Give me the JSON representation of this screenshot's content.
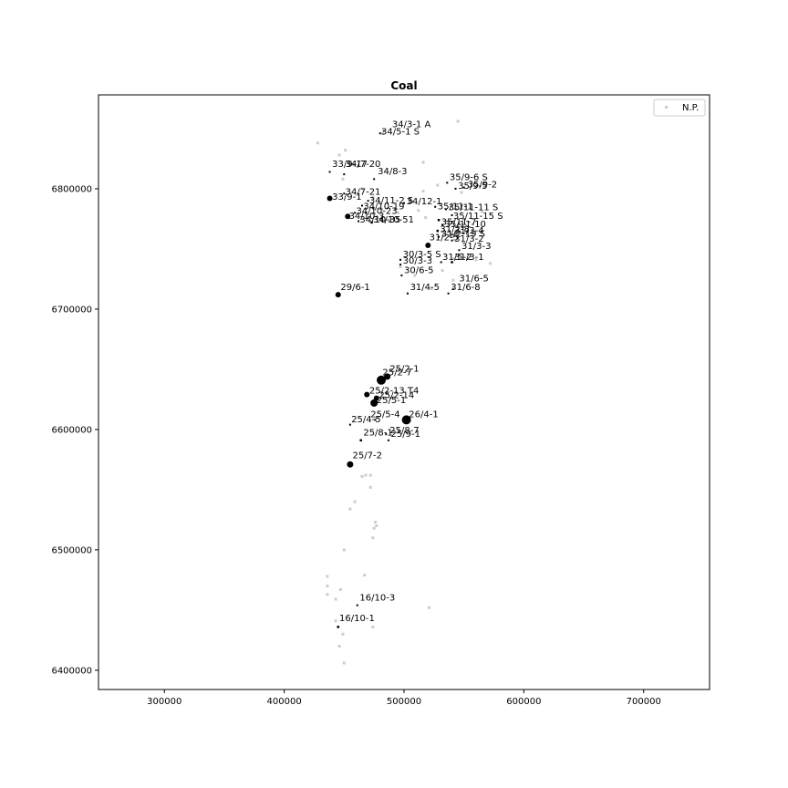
{
  "chart_data": {
    "type": "scatter",
    "title": "Coal",
    "xlabel": "",
    "ylabel": "",
    "xlim": [
      245000,
      755000
    ],
    "ylim": [
      6384000,
      6878000
    ],
    "xticks": [
      300000,
      400000,
      500000,
      600000,
      700000
    ],
    "yticks": [
      6400000,
      6500000,
      6600000,
      6700000,
      6800000
    ],
    "grid": false,
    "legend": {
      "placement": "top-right",
      "entries": [
        "N.P."
      ]
    },
    "colors": {
      "np": "#cccccc",
      "wells": "#000000"
    },
    "np_points": [
      [
        428000,
        6838000
      ],
      [
        446000,
        6828000
      ],
      [
        451000,
        6832000
      ],
      [
        516000,
        6822000
      ],
      [
        545000,
        6856000
      ],
      [
        482000,
        6846000
      ],
      [
        455000,
        6820000
      ],
      [
        449000,
        6808000
      ],
      [
        465000,
        6800000
      ],
      [
        474000,
        6793000
      ],
      [
        516000,
        6798000
      ],
      [
        528000,
        6803000
      ],
      [
        556000,
        6806000
      ],
      [
        548000,
        6797000
      ],
      [
        518000,
        6776000
      ],
      [
        512000,
        6782000
      ],
      [
        565000,
        6781000
      ],
      [
        548000,
        6770000
      ],
      [
        495000,
        6780000
      ],
      [
        488000,
        6773000
      ],
      [
        541000,
        6742000
      ],
      [
        560000,
        6741000
      ],
      [
        572000,
        6738000
      ],
      [
        532000,
        6732000
      ],
      [
        497000,
        6735000
      ],
      [
        509000,
        6728000
      ],
      [
        541000,
        6724000
      ],
      [
        523000,
        6717000
      ],
      [
        472000,
        6562000
      ],
      [
        468000,
        6562000
      ],
      [
        465000,
        6561000
      ],
      [
        472000,
        6552000
      ],
      [
        459000,
        6540000
      ],
      [
        455000,
        6534000
      ],
      [
        476000,
        6523000
      ],
      [
        477000,
        6520000
      ],
      [
        475000,
        6518000
      ],
      [
        474000,
        6510000
      ],
      [
        450000,
        6500000
      ],
      [
        436000,
        6478000
      ],
      [
        467000,
        6479000
      ],
      [
        436000,
        6470000
      ],
      [
        447000,
        6467000
      ],
      [
        436000,
        6463000
      ],
      [
        443000,
        6459000
      ],
      [
        521000,
        6452000
      ],
      [
        443000,
        6441000
      ],
      [
        474000,
        6436000
      ],
      [
        449000,
        6430000
      ],
      [
        446000,
        6420000
      ],
      [
        450000,
        6406000
      ],
      [
        482000,
        6627000
      ]
    ],
    "wells": [
      {
        "name": "34/3-1 A",
        "x": 483000,
        "y": 6848000,
        "size": 1.5
      },
      {
        "name": "34/5-1 S",
        "x": 480000,
        "y": 6846000,
        "size": 2
      },
      {
        "name": "33/9-17",
        "x": 438000,
        "y": 6814000,
        "size": 2
      },
      {
        "name": "34/7-20",
        "x": 450000,
        "y": 6812000,
        "size": 2
      },
      {
        "name": "34/8-3",
        "x": 475000,
        "y": 6808000,
        "size": 2
      },
      {
        "name": "35/9-6 S",
        "x": 536000,
        "y": 6805000,
        "size": 2
      },
      {
        "name": "35/9-2",
        "x": 550000,
        "y": 6801000,
        "size": 2
      },
      {
        "name": "35/9-5",
        "x": 543000,
        "y": 6800000,
        "size": 2
      },
      {
        "name": "34/7-21",
        "x": 450000,
        "y": 6796000,
        "size": 2
      },
      {
        "name": "33/9-1",
        "x": 438000,
        "y": 6792000,
        "size": 3
      },
      {
        "name": "34/11-2 S",
        "x": 470000,
        "y": 6790000,
        "size": 2
      },
      {
        "name": "34/12-1",
        "x": 500000,
        "y": 6788000,
        "size": 2
      },
      {
        "name": "34/10-19",
        "x": 465000,
        "y": 6786000,
        "size": 2
      },
      {
        "name": "35/11-1",
        "x": 526000,
        "y": 6785000,
        "size": 2
      },
      {
        "name": "35/11-11 S",
        "x": 535000,
        "y": 6783000,
        "size": 2
      },
      {
        "name": "34/10-23",
        "x": 459000,
        "y": 6780000,
        "size": 2
      },
      {
        "name": "35/11-15 S",
        "x": 540000,
        "y": 6778000,
        "size": 2
      },
      {
        "name": "34/10-3",
        "x": 453000,
        "y": 6777000,
        "size": 3
      },
      {
        "name": "34/10-35",
        "x": 462000,
        "y": 6773000,
        "size": 2
      },
      {
        "name": "34/10-51",
        "x": 473000,
        "y": 6772000,
        "size": 2.5
      },
      {
        "name": "35/11-7",
        "x": 529000,
        "y": 6774000,
        "size": 2.5
      },
      {
        "name": "35/11-10",
        "x": 532000,
        "y": 6770000,
        "size": 2
      },
      {
        "name": "31/2-8",
        "x": 528000,
        "y": 6765000,
        "size": 2.5
      },
      {
        "name": "31/3-4",
        "x": 540000,
        "y": 6762000,
        "size": 2
      },
      {
        "name": "31/2-19 S",
        "x": 529000,
        "y": 6760000,
        "size": 2
      },
      {
        "name": "31/3-2",
        "x": 540000,
        "y": 6757000,
        "size": 2
      },
      {
        "name": "31/2-5",
        "x": 520000,
        "y": 6753000,
        "size": 3
      },
      {
        "name": "31/3-3",
        "x": 546000,
        "y": 6749000,
        "size": 2
      },
      {
        "name": "30/3-5 S",
        "x": 497000,
        "y": 6741000,
        "size": 2
      },
      {
        "name": "31/5-2",
        "x": 531000,
        "y": 6739000,
        "size": 2
      },
      {
        "name": "31/3-1",
        "x": 540000,
        "y": 6739000,
        "size": 2.5
      },
      {
        "name": "30/3-3",
        "x": 497000,
        "y": 6737000,
        "size": 2
      },
      {
        "name": "30/6-5",
        "x": 498000,
        "y": 6728000,
        "size": 2
      },
      {
        "name": "31/6-5",
        "x": 541000,
        "y": 6717000,
        "size": 1.5
      },
      {
        "name": "29/6-1",
        "x": 445000,
        "y": 6712000,
        "size": 3
      },
      {
        "name": "31/4-5",
        "x": 503000,
        "y": 6713000,
        "size": 2
      },
      {
        "name": "31/6-8",
        "x": 537000,
        "y": 6713000,
        "size": 2
      },
      {
        "name": "25/2-1",
        "x": 486000,
        "y": 6644000,
        "size": 3.5
      },
      {
        "name": "25/2-7",
        "x": 481000,
        "y": 6641000,
        "size": 5
      },
      {
        "name": "25/2-13 T4",
        "x": 477000,
        "y": 6626000,
        "size": 3
      },
      {
        "name": "25/2-14",
        "x": 469000,
        "y": 6629000,
        "size": 3
      },
      {
        "name": "25/5-1",
        "x": 475000,
        "y": 6622000,
        "size": 4
      },
      {
        "name": "25/5-4",
        "x": 476000,
        "y": 6608000,
        "size": 2
      },
      {
        "name": "26/4-1",
        "x": 502000,
        "y": 6608000,
        "size": 5
      },
      {
        "name": "25/4-5",
        "x": 455000,
        "y": 6604000,
        "size": 2
      },
      {
        "name": "25/8-7",
        "x": 485000,
        "y": 6596000,
        "size": 2
      },
      {
        "name": "25/8-1",
        "x": 464000,
        "y": 6591000,
        "size": 2.5
      },
      {
        "name": "25/9-1",
        "x": 487000,
        "y": 6591000,
        "size": 2
      },
      {
        "name": "25/7-2",
        "x": 455000,
        "y": 6571000,
        "size": 3.5
      },
      {
        "name": "16/10-3",
        "x": 461000,
        "y": 6454000,
        "size": 2
      },
      {
        "name": "16/10-1",
        "x": 445000,
        "y": 6436000,
        "size": 2.5
      }
    ],
    "labels": [
      {
        "text": "34/3-1 A",
        "x": 490000,
        "y": 6851000
      },
      {
        "text": "34/5-1 S",
        "x": 481000,
        "y": 6845000
      },
      {
        "text": "33/9-17",
        "x": 440000,
        "y": 6818000
      },
      {
        "text": "34/7-20",
        "x": 451000,
        "y": 6818000
      },
      {
        "text": "34/8-3",
        "x": 478000,
        "y": 6812000
      },
      {
        "text": "35/9-6 S",
        "x": 538000,
        "y": 6807000
      },
      {
        "text": "35/9-2",
        "x": 553000,
        "y": 6801000
      },
      {
        "text": "35/9-5",
        "x": 545000,
        "y": 6800000
      },
      {
        "text": "34/7-21",
        "x": 451000,
        "y": 6795000
      },
      {
        "text": "33/9-1",
        "x": 440000,
        "y": 6791000
      },
      {
        "text": "34/11-2 S",
        "x": 471000,
        "y": 6788000
      },
      {
        "text": "34/12-1",
        "x": 502000,
        "y": 6787000
      },
      {
        "text": "34/10-19",
        "x": 466000,
        "y": 6783000
      },
      {
        "text": "35/11-1",
        "x": 528000,
        "y": 6783000
      },
      {
        "text": "35/11-11 S",
        "x": 537000,
        "y": 6782000
      },
      {
        "text": "34/10-23",
        "x": 460000,
        "y": 6779000
      },
      {
        "text": "35/11-15 S",
        "x": 541000,
        "y": 6775000
      },
      {
        "text": "34/10-3",
        "x": 454000,
        "y": 6775000
      },
      {
        "text": "34/10-35",
        "x": 463000,
        "y": 6772000
      },
      {
        "text": "34/10-51",
        "x": 474000,
        "y": 6772000
      },
      {
        "text": "35/11-7",
        "x": 531000,
        "y": 6770000
      },
      {
        "text": "35/11-10",
        "x": 534000,
        "y": 6768000
      },
      {
        "text": "31/2-8",
        "x": 530000,
        "y": 6764000
      },
      {
        "text": "31/3-4",
        "x": 542000,
        "y": 6763000
      },
      {
        "text": "31/2-19 S",
        "x": 531000,
        "y": 6760000
      },
      {
        "text": "31/3-2",
        "x": 542000,
        "y": 6756000
      },
      {
        "text": "31/2-5",
        "x": 521000,
        "y": 6757000
      },
      {
        "text": "31/3-3",
        "x": 548000,
        "y": 6750000
      },
      {
        "text": "30/3-5 S",
        "x": 499000,
        "y": 6743000
      },
      {
        "text": "31/5-2",
        "x": 532000,
        "y": 6741000
      },
      {
        "text": "31/3-1",
        "x": 542000,
        "y": 6741000
      },
      {
        "text": "30/3-3",
        "x": 499000,
        "y": 6738000
      },
      {
        "text": "30/6-5",
        "x": 500000,
        "y": 6730000
      },
      {
        "text": "31/6-5",
        "x": 546000,
        "y": 6723000
      },
      {
        "text": "29/6-1",
        "x": 447000,
        "y": 6716000
      },
      {
        "text": "31/4-5",
        "x": 505000,
        "y": 6716000
      },
      {
        "text": "31/6-8",
        "x": 539000,
        "y": 6716000
      },
      {
        "text": "25/2-1",
        "x": 488000,
        "y": 6648000
      },
      {
        "text": "25/2-7",
        "x": 482000,
        "y": 6645000
      },
      {
        "text": "25/2-13 T4",
        "x": 471000,
        "y": 6630000
      },
      {
        "text": "25/2-14",
        "x": 479000,
        "y": 6626000
      },
      {
        "text": "25/5-1",
        "x": 477000,
        "y": 6622000
      },
      {
        "text": "25/5-4",
        "x": 472000,
        "y": 6610000
      },
      {
        "text": "26/4-1",
        "x": 504000,
        "y": 6610000
      },
      {
        "text": "25/4-5",
        "x": 456000,
        "y": 6606000
      },
      {
        "text": "25/8-7",
        "x": 488000,
        "y": 6597000
      },
      {
        "text": "25/8-1",
        "x": 466000,
        "y": 6595000
      },
      {
        "text": "25/9-1",
        "x": 489000,
        "y": 6594000
      },
      {
        "text": "25/7-2",
        "x": 457000,
        "y": 6576000
      },
      {
        "text": "16/10-3",
        "x": 463000,
        "y": 6458000
      },
      {
        "text": "16/10-1",
        "x": 446000,
        "y": 6441000
      }
    ]
  }
}
